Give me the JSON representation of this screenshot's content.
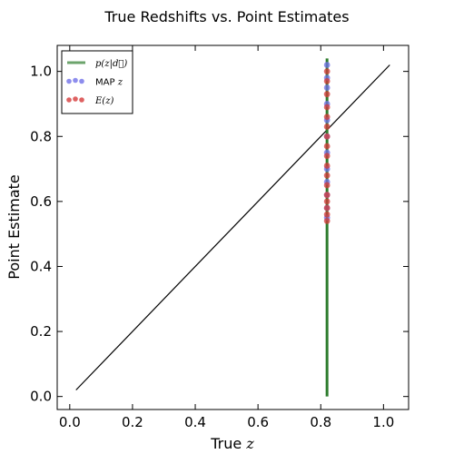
{
  "chart_data": {
    "type": "scatter",
    "title": "True Redshifts vs. Point Estimates",
    "xlabel": "True",
    "xlabel_math": "z",
    "ylabel": "Point Estimate",
    "xlim": [
      -0.04,
      1.08
    ],
    "ylim": [
      -0.04,
      1.08
    ],
    "xticks": [
      "0.0",
      "0.2",
      "0.4",
      "0.6",
      "0.8",
      "1.0"
    ],
    "yticks": [
      "0.0",
      "0.2",
      "0.4",
      "0.6",
      "0.8",
      "1.0"
    ],
    "grid": false,
    "legend_position": "top-left",
    "reference_line": {
      "x": [
        0.02,
        1.02
      ],
      "y": [
        0.02,
        1.02
      ],
      "color": "#000000"
    },
    "series": [
      {
        "name": "p(z|d)",
        "kind": "vertical-line",
        "color": "#2e7d2e",
        "x": 0.82,
        "y_range": [
          0.0,
          1.04
        ]
      },
      {
        "name": "MAP z",
        "kind": "points",
        "color": "#7070e8",
        "points": [
          [
            0.82,
            1.02
          ],
          [
            0.82,
            0.98
          ],
          [
            0.82,
            0.95
          ],
          [
            0.82,
            0.9
          ],
          [
            0.82,
            0.85
          ],
          [
            0.82,
            0.8
          ],
          [
            0.82,
            0.75
          ],
          [
            0.82,
            0.7
          ],
          [
            0.82,
            0.66
          ],
          [
            0.82,
            0.62
          ],
          [
            0.82,
            0.58
          ],
          [
            0.82,
            0.55
          ]
        ]
      },
      {
        "name": "E(z)",
        "kind": "points",
        "color": "#d63a3a",
        "points": [
          [
            0.82,
            1.0
          ],
          [
            0.82,
            0.97
          ],
          [
            0.82,
            0.93
          ],
          [
            0.82,
            0.89
          ],
          [
            0.82,
            0.86
          ],
          [
            0.82,
            0.83
          ],
          [
            0.82,
            0.8
          ],
          [
            0.82,
            0.77
          ],
          [
            0.82,
            0.74
          ],
          [
            0.82,
            0.71
          ],
          [
            0.82,
            0.68
          ],
          [
            0.82,
            0.65
          ],
          [
            0.82,
            0.62
          ],
          [
            0.82,
            0.6
          ],
          [
            0.82,
            0.58
          ],
          [
            0.82,
            0.56
          ],
          [
            0.82,
            0.54
          ]
        ]
      }
    ],
    "legend": [
      {
        "label_math": "p(z|d⃗)",
        "kind": "line",
        "color": "#2e7d2e"
      },
      {
        "label": "MAP",
        "label_math": "z",
        "kind": "dots",
        "color": "#7070e8"
      },
      {
        "label_math": "E(z)",
        "kind": "dots",
        "color": "#d63a3a"
      }
    ]
  }
}
